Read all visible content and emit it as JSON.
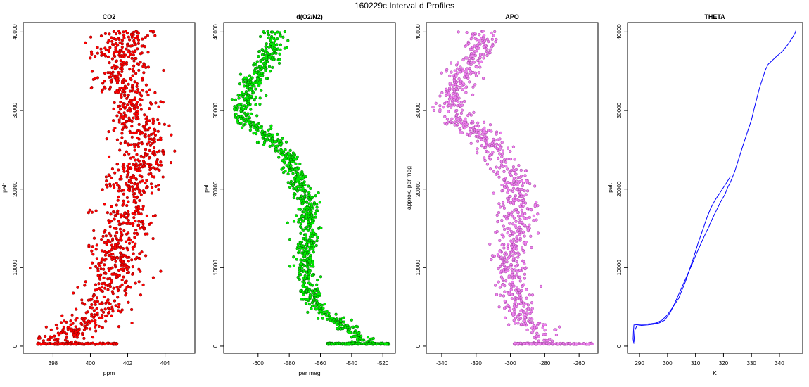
{
  "figure": {
    "title": "160229c   Interval d Profiles"
  },
  "chart_data": [
    {
      "type": "scatter",
      "title": "CO2",
      "xlabel": "ppm",
      "ylabel": "palt",
      "xlim": [
        396.4,
        405.6
      ],
      "ylim": [
        -900,
        41200
      ],
      "xticks": [
        398,
        400,
        402,
        404
      ],
      "yticks": [
        0,
        10000,
        20000,
        30000,
        40000
      ],
      "color": "#ff0000",
      "edge_color": "#7a0000",
      "profile": [
        [
          0,
          398.8
        ],
        [
          1000,
          398.6
        ],
        [
          2000,
          398.9
        ],
        [
          3000,
          399.6
        ],
        [
          4000,
          400.3
        ],
        [
          5000,
          400.7
        ],
        [
          6000,
          400.9
        ],
        [
          7000,
          401.0
        ],
        [
          8000,
          401.3
        ],
        [
          9000,
          401.5
        ],
        [
          10000,
          401.4
        ],
        [
          11000,
          401.5
        ],
        [
          12000,
          401.7
        ],
        [
          13000,
          401.6
        ],
        [
          14000,
          401.7
        ],
        [
          15000,
          401.9
        ],
        [
          16000,
          402.2
        ],
        [
          17000,
          401.8
        ],
        [
          18000,
          402.0
        ],
        [
          19000,
          402.0
        ],
        [
          20000,
          402.4
        ],
        [
          21000,
          402.3
        ],
        [
          22000,
          402.0
        ],
        [
          23000,
          402.9
        ],
        [
          24000,
          402.8
        ],
        [
          25000,
          402.8
        ],
        [
          26000,
          402.6
        ],
        [
          27000,
          402.8
        ],
        [
          28000,
          402.6
        ],
        [
          29000,
          402.5
        ],
        [
          30000,
          402.2
        ],
        [
          31000,
          402.2
        ],
        [
          32000,
          401.9
        ],
        [
          33000,
          401.7
        ],
        [
          34000,
          401.5
        ],
        [
          35000,
          401.8
        ],
        [
          36000,
          401.9
        ],
        [
          37000,
          401.6
        ],
        [
          38000,
          401.6
        ],
        [
          39000,
          402.0
        ],
        [
          40000,
          402.4
        ]
      ],
      "scatter_sd": 0.75,
      "surface_band": {
        "y": 300,
        "xmin": 397.0,
        "xmax": 401.5
      }
    },
    {
      "type": "scatter",
      "title": "d(O2/N2)",
      "xlabel": "per meg",
      "ylabel": "palt",
      "xlim": [
        -622,
        -512
      ],
      "ylim": [
        -900,
        41200
      ],
      "xticks": [
        -600,
        -580,
        -560,
        -540,
        -520
      ],
      "yticks": [
        0,
        10000,
        20000,
        30000,
        40000
      ],
      "color": "#00ee00",
      "edge_color": "#005500",
      "profile": [
        [
          0,
          -531
        ],
        [
          1000,
          -533
        ],
        [
          2000,
          -540
        ],
        [
          3000,
          -548
        ],
        [
          4000,
          -555
        ],
        [
          5000,
          -561
        ],
        [
          6000,
          -565
        ],
        [
          7000,
          -567
        ],
        [
          8000,
          -568
        ],
        [
          9000,
          -568
        ],
        [
          10000,
          -569
        ],
        [
          11000,
          -569
        ],
        [
          12000,
          -570
        ],
        [
          13000,
          -569
        ],
        [
          14000,
          -568
        ],
        [
          15000,
          -568
        ],
        [
          16000,
          -568
        ],
        [
          17000,
          -568
        ],
        [
          18000,
          -568
        ],
        [
          19000,
          -570
        ],
        [
          20000,
          -573
        ],
        [
          21000,
          -575
        ],
        [
          22000,
          -576
        ],
        [
          23000,
          -578
        ],
        [
          24000,
          -581
        ],
        [
          25000,
          -585
        ],
        [
          26000,
          -590
        ],
        [
          27000,
          -596
        ],
        [
          28000,
          -603
        ],
        [
          29000,
          -609
        ],
        [
          30000,
          -609
        ],
        [
          31000,
          -608
        ],
        [
          32000,
          -607
        ],
        [
          33000,
          -605
        ],
        [
          34000,
          -603
        ],
        [
          35000,
          -600
        ],
        [
          36000,
          -595
        ],
        [
          37000,
          -592
        ],
        [
          38000,
          -591
        ],
        [
          39000,
          -590
        ],
        [
          40000,
          -591
        ]
      ],
      "scatter_sd": 3.6,
      "surface_band": {
        "y": 300,
        "xmin": -556,
        "xmax": -516
      }
    },
    {
      "type": "scatter",
      "title": "APO",
      "xlabel": "",
      "ylabel": "approx. per meg",
      "xlim": [
        -349,
        -249
      ],
      "ylim": [
        -900,
        41200
      ],
      "xticks": [
        -340,
        -320,
        -300,
        -280,
        -260
      ],
      "yticks": [
        0,
        10000,
        20000,
        30000,
        40000
      ],
      "color": "#ee82ee",
      "edge_color": "#9a3a9a",
      "profile": [
        [
          0,
          -283
        ],
        [
          1000,
          -283
        ],
        [
          2000,
          -285
        ],
        [
          3000,
          -290
        ],
        [
          4000,
          -294
        ],
        [
          5000,
          -296
        ],
        [
          6000,
          -297
        ],
        [
          7000,
          -298
        ],
        [
          8000,
          -298
        ],
        [
          9000,
          -299
        ],
        [
          10000,
          -300
        ],
        [
          11000,
          -300
        ],
        [
          12000,
          -300
        ],
        [
          13000,
          -299
        ],
        [
          14000,
          -298
        ],
        [
          15000,
          -297
        ],
        [
          16000,
          -296
        ],
        [
          17000,
          -295
        ],
        [
          18000,
          -295
        ],
        [
          19000,
          -296
        ],
        [
          20000,
          -297
        ],
        [
          21000,
          -299
        ],
        [
          22000,
          -301
        ],
        [
          23000,
          -303
        ],
        [
          24000,
          -306
        ],
        [
          25000,
          -309
        ],
        [
          26000,
          -312
        ],
        [
          27000,
          -318
        ],
        [
          28000,
          -325
        ],
        [
          29000,
          -331
        ],
        [
          30000,
          -334
        ],
        [
          31000,
          -335
        ],
        [
          32000,
          -333
        ],
        [
          33000,
          -331
        ],
        [
          34000,
          -329
        ],
        [
          35000,
          -327
        ],
        [
          36000,
          -324
        ],
        [
          37000,
          -321
        ],
        [
          38000,
          -318
        ],
        [
          39000,
          -317
        ],
        [
          40000,
          -318
        ]
      ],
      "scatter_sd": 5.2,
      "surface_band": {
        "y": 300,
        "xmin": -298,
        "xmax": -252
      }
    },
    {
      "type": "line",
      "title": "THETA",
      "xlabel": "K",
      "ylabel": "palt",
      "xlim": [
        285.7,
        348.3
      ],
      "ylim": [
        -900,
        41200
      ],
      "xticks": [
        290,
        300,
        310,
        320,
        330,
        340
      ],
      "yticks": [
        0,
        10000,
        20000,
        30000,
        40000
      ],
      "color": "#0000ff",
      "series": [
        {
          "name": "",
          "x": [
            288.0,
            287.7,
            287.8,
            288.0,
            290.0,
            292.0,
            294.0,
            296.0,
            298.0,
            300.0,
            302.0,
            304.0,
            305.0,
            306.5,
            308.0,
            309.5,
            311.0,
            312.5,
            314.0,
            315.5,
            317.0,
            318.5,
            320.0,
            322.5
          ],
          "y": [
            300,
            900,
            1800,
            2700,
            2750,
            2800,
            2850,
            2950,
            3300,
            4000,
            5000,
            6100,
            7000,
            8300,
            9900,
            11500,
            13200,
            14700,
            16300,
            17600,
            18600,
            19400,
            20200,
            21600
          ]
        },
        {
          "name": "",
          "x": [
            288.0,
            288.3,
            289.0,
            291.0,
            293.0,
            295.0,
            297.0,
            299.0,
            301.0,
            302.5,
            304.0,
            305.5,
            307.0,
            308.5,
            310.0,
            311.5,
            313.0,
            314.5,
            316.0,
            317.5,
            319.0,
            320.5,
            321.5,
            322.5,
            324.0,
            325.5,
            327.0,
            328.5,
            330.0,
            331.0,
            332.0,
            333.0,
            334.0,
            335.0,
            336.0,
            337.5,
            339.0,
            341.0,
            343.0,
            344.5,
            345.5,
            345.9
          ],
          "y": [
            500,
            2000,
            2550,
            2650,
            2700,
            2800,
            2950,
            3300,
            4300,
            5400,
            6600,
            7800,
            9000,
            10200,
            11500,
            12700,
            13900,
            15000,
            16200,
            17300,
            18400,
            19300,
            20200,
            20900,
            22200,
            23900,
            25600,
            27200,
            28800,
            30300,
            31700,
            33000,
            34100,
            35200,
            35900,
            36400,
            36900,
            37500,
            38400,
            39200,
            39800,
            40200
          ]
        }
      ]
    }
  ]
}
